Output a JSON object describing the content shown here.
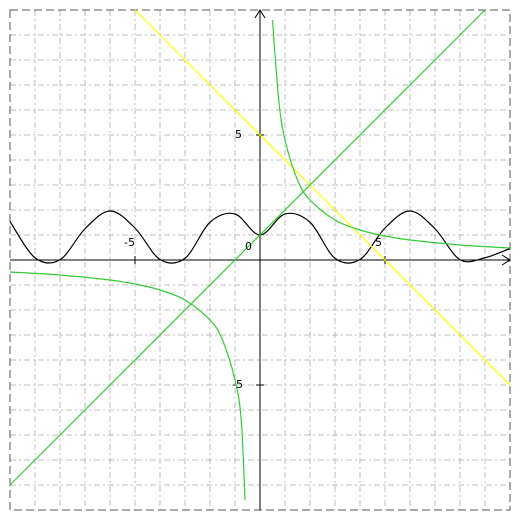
{
  "chart_data": {
    "type": "line",
    "title": "",
    "xlabel": "",
    "ylabel": "",
    "xlim": [
      -10,
      10
    ],
    "ylim": [
      -10,
      10
    ],
    "grid": true,
    "legend": "none",
    "tick_labels": {
      "x": [
        {
          "value": -5,
          "label": "-5"
        },
        {
          "value": 5,
          "label": "5"
        }
      ],
      "y": [
        {
          "value": 5,
          "label": "5"
        },
        {
          "value": -5,
          "label": "-5"
        }
      ],
      "origin": "0"
    },
    "series": [
      {
        "color": "#000000",
        "x": [
          -10,
          -9,
          -8,
          -7,
          -6,
          -5,
          -4,
          -3,
          -2,
          -1,
          0,
          1,
          2,
          3,
          4,
          5,
          6,
          7,
          8,
          9,
          10
        ],
        "y": [
          1.54,
          0.09,
          0.01,
          1.25,
          1.96,
          1.28,
          0.02,
          0.07,
          1.51,
          1.84,
          1.0,
          1.84,
          1.51,
          0.07,
          0.02,
          1.28,
          1.96,
          1.25,
          0.01,
          0.09,
          0.46
        ]
      },
      {
        "color": "#ffff00",
        "x": [
          -5,
          10
        ],
        "y": [
          10,
          -5
        ]
      },
      {
        "color": "#33cc33",
        "x": [
          -10,
          9
        ],
        "y": [
          -9,
          10
        ]
      },
      {
        "color": "#33cc33",
        "x": [
          0.5,
          0.75,
          1,
          1.5,
          2,
          3,
          4,
          5,
          6,
          8,
          10
        ],
        "y": [
          9.6,
          6.4,
          4.8,
          3.2,
          2.4,
          1.6,
          1.2,
          0.96,
          0.8,
          0.6,
          0.48
        ]
      },
      {
        "color": "#33cc33",
        "x": [
          -10,
          -8,
          -6,
          -5,
          -4,
          -3,
          -2,
          -1.5,
          -1,
          -0.75,
          -0.6
        ],
        "y": [
          -0.48,
          -0.6,
          -0.8,
          -0.96,
          -1.2,
          -1.6,
          -2.4,
          -3.2,
          -4.8,
          -6.4,
          -9.6
        ]
      }
    ]
  }
}
